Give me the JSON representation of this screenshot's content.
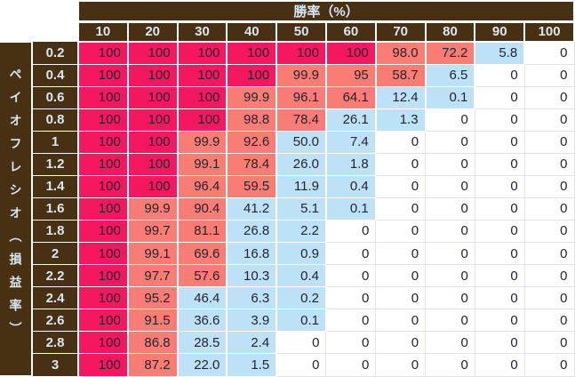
{
  "chart_data": {
    "type": "heatmap",
    "title": "",
    "x_axis_title": "勝率（%）",
    "y_axis_title": "ペイオフレシオ（損益率）",
    "x_tick_labels": [
      "10",
      "20",
      "30",
      "40",
      "50",
      "60",
      "70",
      "80",
      "90",
      "100"
    ],
    "y_tick_labels": [
      "0.2",
      "0.4",
      "0.6",
      "0.8",
      "1",
      "1.2",
      "1.4",
      "1.6",
      "1.8",
      "2",
      "2.2",
      "2.4",
      "2.6",
      "2.8",
      "3"
    ],
    "cell_display": [
      [
        "100",
        "100",
        "100",
        "100",
        "100",
        "100",
        "98.0",
        "72.2",
        "5.8",
        "0"
      ],
      [
        "100",
        "100",
        "100",
        "100",
        "99.9",
        "95",
        "58.7",
        "6.5",
        "0",
        "0"
      ],
      [
        "100",
        "100",
        "100",
        "99.9",
        "96.1",
        "64.1",
        "12.4",
        "0.1",
        "0",
        "0"
      ],
      [
        "100",
        "100",
        "100",
        "98.8",
        "78.4",
        "26.1",
        "1.3",
        "0",
        "0",
        "0"
      ],
      [
        "100",
        "100",
        "99.9",
        "92.6",
        "50.0",
        "7.4",
        "0",
        "0",
        "0",
        "0"
      ],
      [
        "100",
        "100",
        "99.1",
        "78.4",
        "26.0",
        "1.8",
        "0",
        "0",
        "0",
        "0"
      ],
      [
        "100",
        "100",
        "96.4",
        "59.5",
        "11.9",
        "0.4",
        "0",
        "0",
        "0",
        "0"
      ],
      [
        "100",
        "99.9",
        "90.4",
        "41.2",
        "5.1",
        "0.1",
        "0",
        "0",
        "0",
        "0"
      ],
      [
        "100",
        "99.7",
        "81.1",
        "26.8",
        "2.2",
        "0",
        "0",
        "0",
        "0",
        "0"
      ],
      [
        "100",
        "99.1",
        "69.6",
        "16.8",
        "0.9",
        "0",
        "0",
        "0",
        "0",
        "0"
      ],
      [
        "100",
        "97.7",
        "57.6",
        "10.3",
        "0.4",
        "0",
        "0",
        "0",
        "0",
        "0"
      ],
      [
        "100",
        "95.2",
        "46.4",
        "6.3",
        "0.2",
        "0",
        "0",
        "0",
        "0",
        "0"
      ],
      [
        "100",
        "91.5",
        "36.6",
        "3.9",
        "0.1",
        "0",
        "0",
        "0",
        "0",
        "0"
      ],
      [
        "100",
        "86.8",
        "28.5",
        "2.4",
        "0",
        "0",
        "0",
        "0",
        "0",
        "0"
      ],
      [
        "100",
        "87.2",
        "22.0",
        "1.5",
        "0",
        "0",
        "0",
        "0",
        "0",
        "0"
      ]
    ],
    "values": [
      [
        100,
        100,
        100,
        100,
        100,
        100,
        98.0,
        72.2,
        5.8,
        0
      ],
      [
        100,
        100,
        100,
        100,
        99.9,
        95,
        58.7,
        6.5,
        0,
        0
      ],
      [
        100,
        100,
        100,
        99.9,
        96.1,
        64.1,
        12.4,
        0.1,
        0,
        0
      ],
      [
        100,
        100,
        100,
        98.8,
        78.4,
        26.1,
        1.3,
        0,
        0,
        0
      ],
      [
        100,
        100,
        99.9,
        92.6,
        50.0,
        7.4,
        0,
        0,
        0,
        0
      ],
      [
        100,
        100,
        99.1,
        78.4,
        26.0,
        1.8,
        0,
        0,
        0,
        0
      ],
      [
        100,
        100,
        96.4,
        59.5,
        11.9,
        0.4,
        0,
        0,
        0,
        0
      ],
      [
        100,
        99.9,
        90.4,
        41.2,
        5.1,
        0.1,
        0,
        0,
        0,
        0
      ],
      [
        100,
        99.7,
        81.1,
        26.8,
        2.2,
        0,
        0,
        0,
        0,
        0
      ],
      [
        100,
        99.1,
        69.6,
        16.8,
        0.9,
        0,
        0,
        0,
        0,
        0
      ],
      [
        100,
        97.7,
        57.6,
        10.3,
        0.4,
        0,
        0,
        0,
        0,
        0
      ],
      [
        100,
        95.2,
        46.4,
        6.3,
        0.2,
        0,
        0,
        0,
        0,
        0
      ],
      [
        100,
        91.5,
        36.6,
        3.9,
        0.1,
        0,
        0,
        0,
        0,
        0
      ],
      [
        100,
        86.8,
        28.5,
        2.4,
        0,
        0,
        0,
        0,
        0,
        0
      ],
      [
        100,
        87.2,
        22.0,
        1.5,
        0,
        0,
        0,
        0,
        0,
        0
      ]
    ],
    "color_scale": {
      "full": "#f5175f",
      "high": "#f97d74",
      "low": "#bde1f6",
      "zero": "#ffffff",
      "rules": "full: value = 100; high: 50 < value < 100; low: 0 < value <= 50; zero: value = 0"
    },
    "layout_hints": {
      "grid": "white separators between filled cells, light gray gridlines between empty cells",
      "x_axis_position": "top",
      "y_axis_position": "left"
    }
  },
  "colors": {
    "header_bg": "#483012",
    "header_text": "#d7e7f4",
    "cell_text": "#232530",
    "white_cell_grid": "#e4e4e4"
  }
}
